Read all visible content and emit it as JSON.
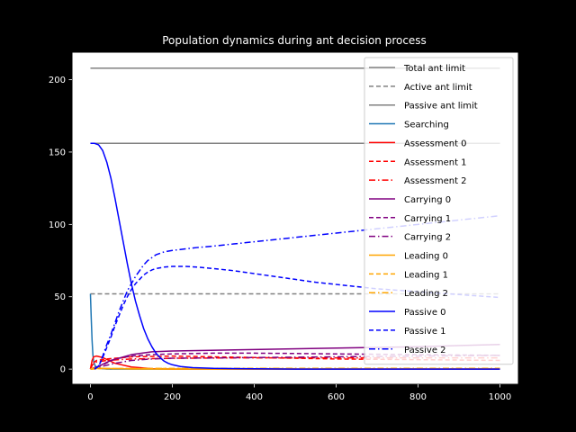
{
  "chart_data": {
    "type": "line",
    "title": "Population dynamics during ant decision process",
    "xlabel": "",
    "ylabel": "",
    "xlim": [
      -45,
      1045
    ],
    "ylim": [
      -10.5,
      219
    ],
    "xticks": [
      0,
      200,
      400,
      600,
      800,
      1000
    ],
    "yticks": [
      0,
      50,
      100,
      150,
      200
    ],
    "grid": false,
    "legend": "top-right",
    "background": "#000000",
    "axes_face": "#ffffff",
    "series": [
      {
        "name": "Total ant limit",
        "color": "#808080",
        "dash": "solid",
        "points": [
          [
            0,
            208
          ],
          [
            1000,
            208
          ]
        ]
      },
      {
        "name": "Active ant limit",
        "color": "#808080",
        "dash": "dashed",
        "points": [
          [
            0,
            52
          ],
          [
            1000,
            52
          ]
        ]
      },
      {
        "name": "Passive ant limit",
        "color": "#808080",
        "dash": "solid",
        "points": [
          [
            0,
            156
          ],
          [
            1000,
            156
          ]
        ]
      },
      {
        "name": "Searching",
        "color": "#1f77b4",
        "dash": "solid",
        "points": [
          [
            0,
            52
          ],
          [
            2,
            35
          ],
          [
            4,
            20
          ],
          [
            6,
            10
          ],
          [
            8,
            5
          ],
          [
            12,
            2
          ],
          [
            20,
            0.5
          ],
          [
            40,
            0
          ],
          [
            1000,
            0
          ]
        ]
      },
      {
        "name": "Assessment 0",
        "color": "#ff0000",
        "dash": "solid",
        "points": [
          [
            0,
            0
          ],
          [
            4,
            6
          ],
          [
            8,
            8.5
          ],
          [
            15,
            9
          ],
          [
            30,
            8
          ],
          [
            60,
            4
          ],
          [
            100,
            1.5
          ],
          [
            150,
            0.3
          ],
          [
            200,
            0
          ],
          [
            1000,
            0
          ]
        ]
      },
      {
        "name": "Assessment 1",
        "color": "#ff0000",
        "dash": "dashed",
        "points": [
          [
            0,
            0
          ],
          [
            5,
            4
          ],
          [
            15,
            6
          ],
          [
            40,
            7
          ],
          [
            100,
            8.5
          ],
          [
            200,
            9
          ],
          [
            300,
            8.5
          ],
          [
            400,
            8
          ],
          [
            600,
            7
          ],
          [
            800,
            6.5
          ],
          [
            1000,
            6
          ]
        ]
      },
      {
        "name": "Assessment 2",
        "color": "#ff0000",
        "dash": "dashdot",
        "points": [
          [
            0,
            0
          ],
          [
            5,
            3
          ],
          [
            15,
            5
          ],
          [
            40,
            6
          ],
          [
            100,
            7
          ],
          [
            200,
            7.5
          ],
          [
            400,
            7.8
          ],
          [
            600,
            7.8
          ],
          [
            800,
            7.8
          ],
          [
            1000,
            7.8
          ]
        ]
      },
      {
        "name": "Carrying 0",
        "color": "#800080",
        "dash": "solid",
        "points": [
          [
            0,
            0
          ],
          [
            20,
            2
          ],
          [
            50,
            6
          ],
          [
            100,
            10
          ],
          [
            150,
            12
          ],
          [
            200,
            12.5
          ],
          [
            400,
            13.5
          ],
          [
            600,
            14.5
          ],
          [
            800,
            15.5
          ],
          [
            1000,
            17
          ]
        ]
      },
      {
        "name": "Carrying 1",
        "color": "#800080",
        "dash": "dashed",
        "points": [
          [
            0,
            0
          ],
          [
            30,
            3
          ],
          [
            60,
            7
          ],
          [
            100,
            9
          ],
          [
            150,
            10
          ],
          [
            200,
            10.5
          ],
          [
            300,
            11
          ],
          [
            400,
            11
          ],
          [
            500,
            10.8
          ],
          [
            600,
            10.5
          ],
          [
            800,
            10
          ],
          [
            1000,
            9.5
          ]
        ]
      },
      {
        "name": "Carrying 2",
        "color": "#800080",
        "dash": "dashdot",
        "points": [
          [
            0,
            0
          ],
          [
            30,
            2
          ],
          [
            60,
            4
          ],
          [
            100,
            6
          ],
          [
            150,
            7
          ],
          [
            200,
            7.5
          ],
          [
            400,
            8
          ],
          [
            600,
            8.5
          ],
          [
            800,
            9
          ],
          [
            1000,
            9.5
          ]
        ]
      },
      {
        "name": "Leading 0",
        "color": "#ffa500",
        "dash": "solid",
        "points": [
          [
            0,
            0
          ],
          [
            3,
            0.4
          ],
          [
            8,
            0.6
          ],
          [
            20,
            0.6
          ],
          [
            50,
            0.4
          ],
          [
            100,
            0.1
          ],
          [
            200,
            0
          ],
          [
            1000,
            0
          ]
        ]
      },
      {
        "name": "Leading 1",
        "color": "#ffa500",
        "dash": "dashed",
        "points": [
          [
            0,
            0
          ],
          [
            20,
            0.3
          ],
          [
            100,
            0.4
          ],
          [
            300,
            0.4
          ],
          [
            600,
            0.3
          ],
          [
            1000,
            0.3
          ]
        ]
      },
      {
        "name": "Leading 2",
        "color": "#ffa500",
        "dash": "dashdot",
        "points": [
          [
            0,
            0
          ],
          [
            20,
            0.3
          ],
          [
            100,
            0.4
          ],
          [
            300,
            0.5
          ],
          [
            600,
            0.5
          ],
          [
            1000,
            0.5
          ]
        ]
      },
      {
        "name": "Passive 0",
        "color": "#0000ff",
        "dash": "solid",
        "points": [
          [
            0,
            156
          ],
          [
            10,
            156
          ],
          [
            20,
            155
          ],
          [
            30,
            151
          ],
          [
            40,
            143
          ],
          [
            50,
            132
          ],
          [
            60,
            118
          ],
          [
            70,
            103
          ],
          [
            80,
            88
          ],
          [
            90,
            73
          ],
          [
            100,
            59
          ],
          [
            110,
            47
          ],
          [
            120,
            37
          ],
          [
            130,
            28
          ],
          [
            140,
            21
          ],
          [
            150,
            15.5
          ],
          [
            160,
            11
          ],
          [
            170,
            8
          ],
          [
            180,
            5.5
          ],
          [
            190,
            4
          ],
          [
            200,
            3
          ],
          [
            220,
            1.8
          ],
          [
            250,
            1
          ],
          [
            300,
            0.5
          ],
          [
            400,
            0.2
          ],
          [
            500,
            0
          ],
          [
            1000,
            0
          ]
        ]
      },
      {
        "name": "Passive 1",
        "color": "#0000ff",
        "dash": "dashed",
        "points": [
          [
            10,
            0
          ],
          [
            20,
            2
          ],
          [
            30,
            8
          ],
          [
            40,
            15
          ],
          [
            50,
            22
          ],
          [
            60,
            30
          ],
          [
            70,
            37
          ],
          [
            80,
            44
          ],
          [
            90,
            50
          ],
          [
            100,
            55
          ],
          [
            110,
            59
          ],
          [
            120,
            62
          ],
          [
            130,
            65
          ],
          [
            140,
            67
          ],
          [
            150,
            68.5
          ],
          [
            160,
            69.5
          ],
          [
            180,
            70.5
          ],
          [
            200,
            71
          ],
          [
            230,
            71
          ],
          [
            260,
            70.5
          ],
          [
            300,
            69.5
          ],
          [
            350,
            68
          ],
          [
            400,
            66
          ],
          [
            450,
            64
          ],
          [
            500,
            62
          ],
          [
            550,
            60
          ],
          [
            600,
            58.5
          ],
          [
            650,
            57
          ],
          [
            700,
            55.5
          ],
          [
            750,
            54.5
          ],
          [
            800,
            53.5
          ],
          [
            850,
            52.5
          ],
          [
            900,
            51.5
          ],
          [
            950,
            50.5
          ],
          [
            1000,
            49.5
          ]
        ]
      },
      {
        "name": "Passive 2",
        "color": "#0000ff",
        "dash": "dashdot",
        "points": [
          [
            10,
            0
          ],
          [
            20,
            2
          ],
          [
            30,
            9
          ],
          [
            40,
            17
          ],
          [
            50,
            24
          ],
          [
            60,
            32
          ],
          [
            70,
            40
          ],
          [
            80,
            47
          ],
          [
            90,
            54
          ],
          [
            100,
            59
          ],
          [
            110,
            64
          ],
          [
            120,
            68
          ],
          [
            130,
            72
          ],
          [
            140,
            75
          ],
          [
            150,
            77
          ],
          [
            160,
            79
          ],
          [
            180,
            81
          ],
          [
            200,
            82
          ],
          [
            230,
            83
          ],
          [
            260,
            84
          ],
          [
            300,
            85
          ],
          [
            350,
            86.5
          ],
          [
            400,
            88
          ],
          [
            450,
            89.5
          ],
          [
            500,
            91
          ],
          [
            550,
            92.5
          ],
          [
            600,
            94
          ],
          [
            650,
            95.5
          ],
          [
            700,
            97
          ],
          [
            750,
            98.5
          ],
          [
            800,
            100
          ],
          [
            850,
            101.5
          ],
          [
            900,
            103
          ],
          [
            950,
            104.5
          ],
          [
            1000,
            106
          ]
        ]
      }
    ]
  }
}
